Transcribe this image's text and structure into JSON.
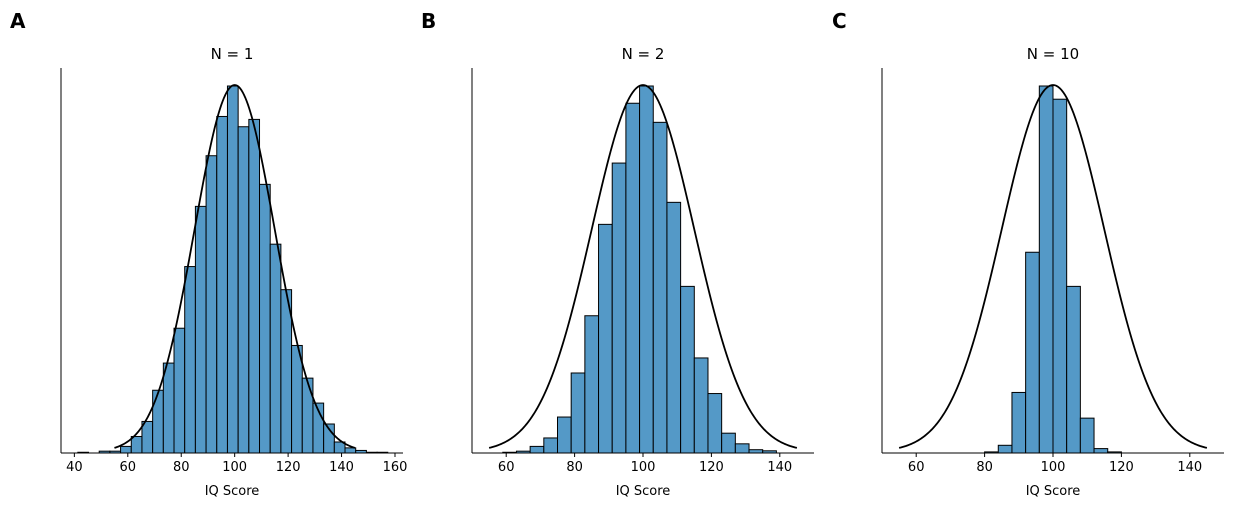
{
  "chart_data": [
    {
      "type": "bar",
      "panel_label": "A",
      "title": "N = 1",
      "xlabel": "IQ Score",
      "ylabel": "",
      "xlim": [
        35,
        163
      ],
      "xticks": [
        40,
        60,
        80,
        100,
        120,
        140,
        160
      ],
      "y_ticks_shown": false,
      "bin_width": 4,
      "bin_starts": [
        41.3,
        45.3,
        49.3,
        53.3,
        57.3,
        61.3,
        65.3,
        69.3,
        73.3,
        77.3,
        81.3,
        85.3,
        89.3,
        93.3,
        97.3,
        101.3,
        105.3,
        109.3,
        113.3,
        117.3,
        121.3,
        125.3,
        129.3,
        133.3,
        137.3,
        141.3,
        145.3,
        149.3,
        153.3
      ],
      "relative_counts": [
        0.002,
        0,
        0.005,
        0.005,
        0.018,
        0.045,
        0.086,
        0.171,
        0.245,
        0.34,
        0.508,
        0.672,
        0.81,
        0.917,
        1.0,
        0.889,
        0.909,
        0.732,
        0.569,
        0.445,
        0.293,
        0.204,
        0.136,
        0.079,
        0.03,
        0.014,
        0.007,
        0.002,
        0.002
      ],
      "reference_curve": {
        "type": "normal",
        "mean": 100,
        "sd": 15,
        "x_range": [
          55,
          145
        ]
      },
      "bar_color": "#5499c7",
      "curve_color": "#000000",
      "grid": false
    },
    {
      "type": "bar",
      "panel_label": "B",
      "title": "N = 2",
      "xlabel": "IQ Score",
      "ylabel": "",
      "xlim": [
        50,
        150
      ],
      "xticks": [
        60,
        80,
        100,
        120,
        140
      ],
      "y_ticks_shown": false,
      "bin_width": 4,
      "bin_starts": [
        59,
        63,
        67,
        71,
        75,
        79,
        83,
        87,
        91,
        95,
        99,
        103,
        107,
        111,
        115,
        119,
        123,
        127,
        131,
        135
      ],
      "relative_counts": [
        0.002,
        0.005,
        0.018,
        0.041,
        0.098,
        0.218,
        0.374,
        0.623,
        0.79,
        0.953,
        1.0,
        0.901,
        0.683,
        0.454,
        0.259,
        0.162,
        0.054,
        0.025,
        0.009,
        0.006
      ],
      "reference_curve": {
        "type": "normal",
        "mean": 100,
        "sd": 15,
        "x_range": [
          55,
          145
        ]
      },
      "bar_color": "#5499c7",
      "curve_color": "#000000",
      "grid": false
    },
    {
      "type": "bar",
      "panel_label": "C",
      "title": "N = 10",
      "xlabel": "IQ Score",
      "ylabel": "",
      "xlim": [
        50,
        150
      ],
      "xticks": [
        60,
        80,
        100,
        120,
        140
      ],
      "y_ticks_shown": false,
      "bin_width": 4,
      "bin_starts": [
        80,
        84,
        88,
        92,
        96,
        100,
        104,
        108,
        112,
        116
      ],
      "relative_counts": [
        0.003,
        0.021,
        0.165,
        0.547,
        1.0,
        0.964,
        0.454,
        0.095,
        0.012,
        0.003
      ],
      "reference_curve": {
        "type": "normal",
        "mean": 100,
        "sd": 15,
        "x_range": [
          55,
          145
        ]
      },
      "bar_color": "#5499c7",
      "curve_color": "#000000",
      "grid": false
    }
  ]
}
